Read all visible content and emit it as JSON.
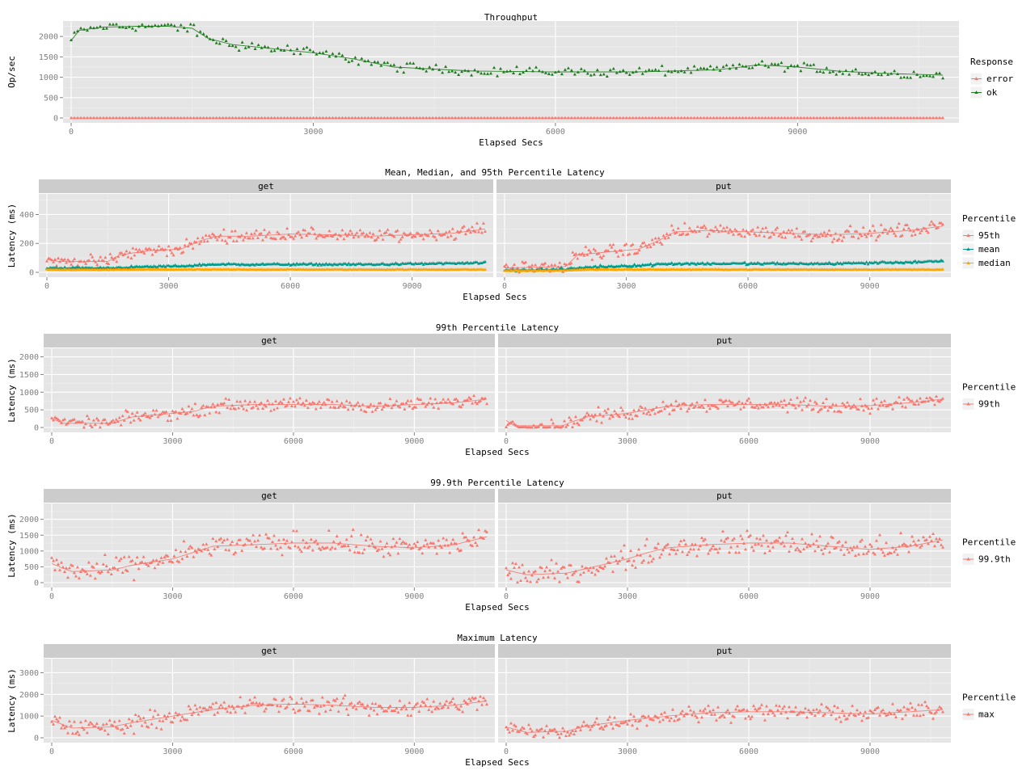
{
  "chart_data": [
    {
      "type": "scatter",
      "title": "Throughput",
      "xlabel": "Elapsed Secs",
      "ylabel": "Op/sec",
      "xlim": [
        0,
        11000
      ],
      "ylim": [
        0,
        2300
      ],
      "x_ticks": [
        0,
        3000,
        6000,
        9000
      ],
      "y_ticks": [
        0,
        500,
        1000,
        1500,
        2000
      ],
      "grid": true,
      "legend": {
        "title": "Response",
        "position": "right",
        "entries": [
          "error",
          "ok"
        ]
      },
      "colors": {
        "error": "#F8766D",
        "ok": "#1E7B1E"
      },
      "series": [
        {
          "name": "error",
          "x": [
            0,
            1000,
            2000,
            3000,
            4000,
            5000,
            6000,
            7000,
            8000,
            9000,
            10000,
            10800
          ],
          "y": [
            0,
            0,
            0,
            0,
            0,
            0,
            0,
            0,
            0,
            0,
            0,
            0
          ],
          "noise": 0
        },
        {
          "name": "ok",
          "x": [
            0,
            100,
            400,
            800,
            1200,
            1500,
            1700,
            2000,
            2500,
            3000,
            3500,
            4000,
            4500,
            5000,
            6000,
            7000,
            8000,
            8500,
            9000,
            9500,
            10000,
            10800
          ],
          "y": [
            1900,
            2150,
            2230,
            2250,
            2250,
            2200,
            1950,
            1800,
            1700,
            1600,
            1450,
            1250,
            1200,
            1150,
            1130,
            1130,
            1180,
            1300,
            1250,
            1150,
            1100,
            1050
          ],
          "noise": 100
        }
      ]
    },
    {
      "type": "scatter",
      "title": "Mean, Median, and 95th Percentile Latency",
      "xlabel": "Elapsed Secs",
      "ylabel": "Latency (ms)",
      "facets": [
        "get",
        "put"
      ],
      "xlim": [
        0,
        11000
      ],
      "ylim": [
        0,
        520
      ],
      "x_ticks": [
        0,
        3000,
        6000,
        9000
      ],
      "y_ticks": [
        0,
        200,
        400
      ],
      "legend": {
        "title": "Percentile",
        "position": "right",
        "entries": [
          "95th",
          "mean",
          "median"
        ]
      },
      "colors": {
        "95th": "#F8766D",
        "mean": "#00998A",
        "median": "#FFA500"
      },
      "series": [
        {
          "name": "95th",
          "facet": "get",
          "x": [
            0,
            300,
            1500,
            1800,
            2500,
            3300,
            3800,
            4200,
            5000,
            6000,
            7000,
            8000,
            9000,
            10000,
            10800
          ],
          "y": [
            90,
            75,
            75,
            120,
            150,
            160,
            220,
            250,
            250,
            265,
            260,
            250,
            260,
            270,
            300
          ],
          "noise": 35
        },
        {
          "name": "mean",
          "facet": "get",
          "x": [
            0,
            1500,
            2000,
            3500,
            4000,
            6000,
            8000,
            10800
          ],
          "y": [
            30,
            30,
            35,
            45,
            55,
            55,
            55,
            65
          ],
          "noise": 6
        },
        {
          "name": "median",
          "facet": "get",
          "x": [
            0,
            1500,
            2000,
            4000,
            10800
          ],
          "y": [
            18,
            18,
            20,
            20,
            20
          ],
          "noise": 2
        },
        {
          "name": "95th",
          "facet": "put",
          "x": [
            0,
            1500,
            1800,
            2500,
            3300,
            3800,
            4200,
            5000,
            6000,
            7000,
            8000,
            9000,
            10000,
            10800
          ],
          "y": [
            30,
            40,
            120,
            140,
            160,
            220,
            280,
            290,
            280,
            270,
            260,
            270,
            290,
            320
          ],
          "noise": 40
        },
        {
          "name": "mean",
          "facet": "put",
          "x": [
            0,
            1500,
            2000,
            3500,
            4000,
            6000,
            8000,
            10800
          ],
          "y": [
            15,
            20,
            35,
            50,
            60,
            60,
            60,
            75
          ],
          "noise": 7
        },
        {
          "name": "median",
          "facet": "put",
          "x": [
            0,
            1500,
            2000,
            4000,
            10800
          ],
          "y": [
            10,
            12,
            20,
            20,
            20
          ],
          "noise": 2
        }
      ]
    },
    {
      "type": "scatter",
      "title": "99th Percentile Latency",
      "xlabel": "Elapsed Secs",
      "ylabel": "Latency (ms)",
      "facets": [
        "get",
        "put"
      ],
      "xlim": [
        0,
        11000
      ],
      "ylim": [
        0,
        2150
      ],
      "x_ticks": [
        0,
        3000,
        6000,
        9000
      ],
      "y_ticks": [
        0,
        500,
        1000,
        1500,
        2000
      ],
      "legend": {
        "title": "Percentile",
        "position": "right",
        "entries": [
          "99th"
        ]
      },
      "colors": {
        "99th": "#F8766D"
      },
      "series": [
        {
          "name": "99th",
          "facet": "get",
          "x": [
            0,
            300,
            1500,
            2000,
            3000,
            3500,
            4000,
            5000,
            6000,
            7000,
            8000,
            9000,
            10000,
            10800
          ],
          "y": [
            250,
            120,
            120,
            300,
            400,
            450,
            600,
            650,
            650,
            650,
            600,
            650,
            700,
            800
          ],
          "noise": 150
        },
        {
          "name": "99th",
          "facet": "put",
          "x": [
            0,
            200,
            1400,
            1600,
            2000,
            3000,
            3500,
            4000,
            5000,
            6000,
            7000,
            8000,
            9000,
            10000,
            10800
          ],
          "y": [
            200,
            50,
            50,
            150,
            300,
            400,
            500,
            600,
            650,
            650,
            650,
            600,
            620,
            700,
            800
          ],
          "noise": 160
        }
      ]
    },
    {
      "type": "scatter",
      "title": "99.9th Percentile Latency",
      "xlabel": "Elapsed Secs",
      "ylabel": "Latency (ms)",
      "facets": [
        "get",
        "put"
      ],
      "xlim": [
        0,
        11000
      ],
      "ylim": [
        0,
        2400
      ],
      "x_ticks": [
        0,
        3000,
        6000,
        9000
      ],
      "y_ticks": [
        0,
        500,
        1000,
        1500,
        2000
      ],
      "legend": {
        "title": "Percentile",
        "position": "right",
        "entries": [
          "99.9th"
        ]
      },
      "colors": {
        "99.9th": "#F8766D"
      },
      "series": [
        {
          "name": "99.9th",
          "facet": "get",
          "x": [
            0,
            500,
            1500,
            2000,
            3000,
            3500,
            4000,
            5000,
            6000,
            7000,
            8000,
            9000,
            10000,
            10800
          ],
          "y": [
            600,
            350,
            400,
            550,
            750,
            950,
            1150,
            1200,
            1250,
            1250,
            1150,
            1100,
            1200,
            1450
          ],
          "noise": 300
        },
        {
          "name": "99.9th",
          "facet": "put",
          "x": [
            0,
            500,
            1500,
            2000,
            3000,
            3500,
            4000,
            5000,
            6000,
            7000,
            8000,
            9000,
            10000,
            10800
          ],
          "y": [
            400,
            250,
            300,
            450,
            750,
            950,
            1100,
            1200,
            1250,
            1250,
            1150,
            1050,
            1150,
            1350
          ],
          "noise": 320
        }
      ]
    },
    {
      "type": "scatter",
      "title": "Maximum Latency",
      "xlabel": "Elapsed Secs",
      "ylabel": "Latency (ms)",
      "facets": [
        "get",
        "put"
      ],
      "xlim": [
        0,
        11000
      ],
      "ylim": [
        0,
        3500
      ],
      "x_ticks": [
        0,
        3000,
        6000,
        9000
      ],
      "y_ticks": [
        0,
        1000,
        2000,
        3000
      ],
      "legend": {
        "title": "Percentile",
        "position": "right",
        "entries": [
          "max"
        ]
      },
      "colors": {
        "max": "#F8766D"
      },
      "series": [
        {
          "name": "max",
          "facet": "get",
          "x": [
            0,
            500,
            1500,
            2000,
            3000,
            4000,
            5000,
            6000,
            7000,
            8000,
            9000,
            10000,
            10800
          ],
          "y": [
            800,
            450,
            500,
            700,
            1000,
            1300,
            1500,
            1550,
            1500,
            1400,
            1400,
            1500,
            1700
          ],
          "noise": 350
        },
        {
          "name": "max",
          "facet": "put",
          "x": [
            0,
            500,
            1500,
            2000,
            3000,
            4000,
            5000,
            6000,
            7000,
            8000,
            9000,
            10000,
            10800
          ],
          "y": [
            500,
            250,
            300,
            550,
            800,
            1000,
            1150,
            1200,
            1200,
            1150,
            1100,
            1200,
            1300
          ],
          "noise": 300
        }
      ]
    }
  ]
}
